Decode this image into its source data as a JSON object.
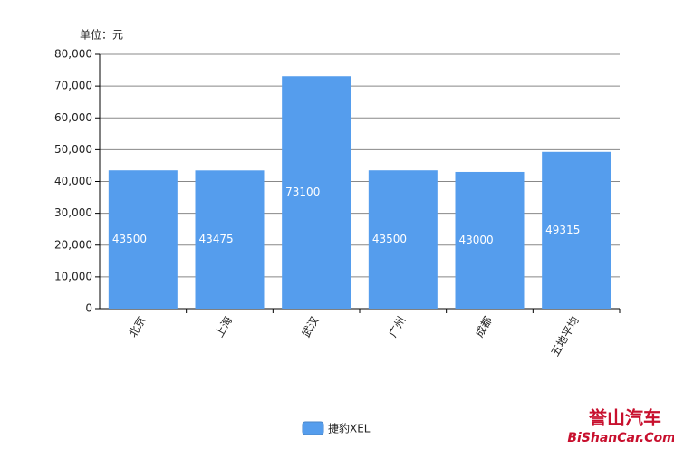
{
  "chart_data": {
    "type": "bar",
    "unit_label": "单位：元",
    "categories": [
      "北京",
      "上海",
      "武汉",
      "广州",
      "成都",
      "五地平均"
    ],
    "series": [
      {
        "name": "捷豹XEL",
        "color": "#559ded",
        "values": [
          43500,
          43475,
          73100,
          43500,
          43000,
          49315
        ]
      }
    ],
    "ylim": [
      0,
      80000
    ],
    "yticks": [
      0,
      {
        "value": 10000,
        "label": "10,000"
      },
      {
        "value": 20000,
        "label": "20,000"
      },
      {
        "value": 30000,
        "label": "30,000"
      },
      {
        "value": 40000,
        "label": "40,000"
      },
      {
        "value": 50000,
        "label": "50,000"
      },
      {
        "value": 60000,
        "label": "60,000"
      },
      {
        "value": 70000,
        "label": "70,000"
      },
      {
        "value": 80000,
        "label": "80,000"
      }
    ],
    "grid": true,
    "legend": "bottom",
    "watermark": {
      "title": "誉山汽车",
      "site": "BiShanCar.Com"
    }
  }
}
